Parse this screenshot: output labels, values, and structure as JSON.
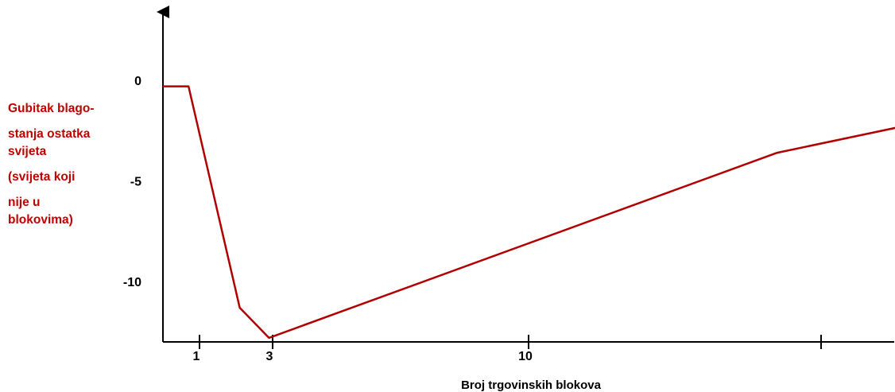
{
  "chart_data": {
    "type": "line",
    "xlabel": "Broj trgovinskih blokova",
    "ylabel_lines": [
      "Gubitak blago-",
      "stanja ostatka",
      "svijeta",
      "(svijeta koji",
      "nije u",
      "blokovima)"
    ],
    "y_ticks": [
      {
        "value": 0,
        "label": "0"
      },
      {
        "value": -5,
        "label": "-5"
      },
      {
        "value": -10,
        "label": "-10"
      }
    ],
    "x_ticks": [
      {
        "value": 1,
        "label": "1"
      },
      {
        "value": 3,
        "label": "3"
      },
      {
        "value": 10,
        "label": "10"
      },
      {
        "value": 18,
        "label": ""
      }
    ],
    "xlim": [
      0,
      20
    ],
    "ylim": [
      -13,
      3.4
    ],
    "series": [
      {
        "color": "#b00000",
        "x": [
          0,
          0.7,
          2.1,
          2.9,
          16.8,
          20.2
        ],
        "y": [
          -0.3,
          -0.3,
          -11.3,
          -12.8,
          -3.6,
          -2.3
        ]
      }
    ],
    "colors": {
      "line": "#b00000",
      "ylabel": "#c00000",
      "axis": "#000000"
    }
  }
}
